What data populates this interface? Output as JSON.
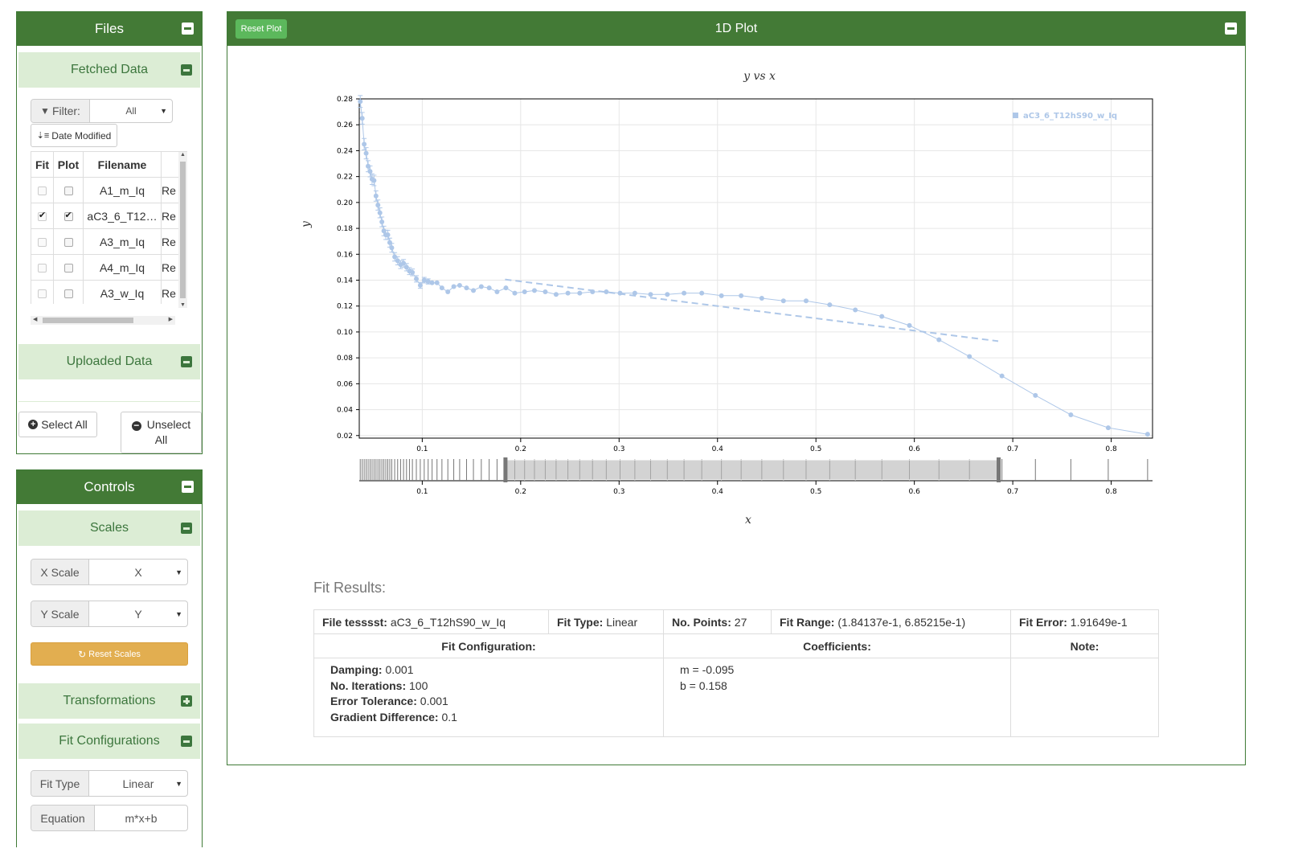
{
  "files_panel": {
    "title": "Files",
    "fetched": {
      "title": "Fetched Data",
      "filter_label": "Filter:",
      "filter_value": "All",
      "sort_label": "Date Modified",
      "columns": [
        "Fit",
        "Plot",
        "Filename"
      ],
      "rows": [
        {
          "fit": false,
          "plot": false,
          "name": "A1_m_Iq",
          "extra": "Re"
        },
        {
          "fit": true,
          "plot": true,
          "name": "aC3_6_T12…",
          "extra": "Re"
        },
        {
          "fit": false,
          "plot": false,
          "name": "A3_m_Iq",
          "extra": "Re"
        },
        {
          "fit": false,
          "plot": false,
          "name": "A4_m_Iq",
          "extra": "Re"
        },
        {
          "fit": false,
          "plot": false,
          "name": "A3_w_Iq",
          "extra": "Re"
        }
      ]
    },
    "uploaded": {
      "title": "Uploaded Data"
    },
    "select_all": "Select All",
    "unselect_all_1": "Unselect",
    "unselect_all_2": "All"
  },
  "controls_panel": {
    "title": "Controls",
    "scales": {
      "title": "Scales",
      "x_label": "X Scale",
      "x_value": "X",
      "y_label": "Y Scale",
      "y_value": "Y",
      "reset": "Reset Scales"
    },
    "transformations": {
      "title": "Transformations"
    },
    "fit_configs": {
      "title": "Fit Configurations",
      "fit_type_label": "Fit Type",
      "fit_type_value": "Linear",
      "equation_label": "Equation",
      "equation_value": "m*x+b"
    }
  },
  "plot_panel": {
    "title": "1D Plot",
    "reset_plot": "Reset Plot"
  },
  "chart_data": {
    "type": "scatter",
    "title": "y vs x",
    "xlabel": "x",
    "ylabel": "y",
    "xlim": [
      0.036,
      0.842
    ],
    "ylim": [
      0.018,
      0.28
    ],
    "xticks": [
      0.1,
      0.2,
      0.3,
      0.4,
      0.5,
      0.6,
      0.7,
      0.8
    ],
    "yticks": [
      0.02,
      0.04,
      0.06,
      0.08,
      0.1,
      0.12,
      0.14,
      0.16,
      0.18,
      0.2,
      0.22,
      0.24,
      0.26,
      0.28
    ],
    "legend": {
      "position": "top-right",
      "entries": [
        "aC3_6_T12hS90_w_Iq"
      ]
    },
    "brush_range": [
      0.184137,
      0.685215
    ],
    "series": [
      {
        "name": "aC3_6_T12hS90_w_Iq",
        "color": "#aec7e8",
        "x": [
          0.037,
          0.039,
          0.041,
          0.043,
          0.045,
          0.047,
          0.049,
          0.051,
          0.053,
          0.055,
          0.057,
          0.059,
          0.061,
          0.063,
          0.065,
          0.067,
          0.069,
          0.072,
          0.075,
          0.078,
          0.081,
          0.084,
          0.087,
          0.09,
          0.094,
          0.098,
          0.102,
          0.106,
          0.11,
          0.115,
          0.12,
          0.126,
          0.132,
          0.138,
          0.145,
          0.152,
          0.16,
          0.168,
          0.176,
          0.185,
          0.194,
          0.204,
          0.214,
          0.225,
          0.236,
          0.248,
          0.26,
          0.273,
          0.287,
          0.301,
          0.316,
          0.332,
          0.349,
          0.366,
          0.384,
          0.404,
          0.424,
          0.445,
          0.467,
          0.49,
          0.514,
          0.54,
          0.567,
          0.595,
          0.625,
          0.656,
          0.689,
          0.723,
          0.759,
          0.797,
          0.837
        ],
        "y": [
          0.278,
          0.265,
          0.245,
          0.238,
          0.228,
          0.224,
          0.218,
          0.217,
          0.205,
          0.198,
          0.192,
          0.185,
          0.178,
          0.175,
          0.175,
          0.169,
          0.165,
          0.158,
          0.155,
          0.152,
          0.153,
          0.15,
          0.147,
          0.146,
          0.141,
          0.136,
          0.14,
          0.139,
          0.138,
          0.138,
          0.134,
          0.131,
          0.135,
          0.136,
          0.134,
          0.132,
          0.135,
          0.134,
          0.131,
          0.134,
          0.13,
          0.131,
          0.132,
          0.131,
          0.129,
          0.13,
          0.13,
          0.131,
          0.131,
          0.13,
          0.13,
          0.129,
          0.129,
          0.13,
          0.13,
          0.128,
          0.128,
          0.126,
          0.124,
          0.124,
          0.121,
          0.117,
          0.112,
          0.105,
          0.094,
          0.081,
          0.066,
          0.051,
          0.036,
          0.026,
          0.021
        ]
      }
    ],
    "fit_line": {
      "m": -0.095,
      "b": 0.158,
      "x_range": [
        0.184137,
        0.685215
      ]
    }
  },
  "fit_results": {
    "heading": "Fit Results:",
    "file_label": "File tesssst:",
    "file_value": "aC3_6_T12hS90_w_Iq",
    "fit_type_label": "Fit Type:",
    "fit_type_value": "Linear",
    "points_label": "No. Points:",
    "points_value": "27",
    "range_label": "Fit Range:",
    "range_value": "(1.84137e-1, 6.85215e-1)",
    "error_label": "Fit Error:",
    "error_value": "1.91649e-1",
    "config_header": "Fit Configuration:",
    "coeff_header": "Coefficients:",
    "note_header": "Note:",
    "config": [
      {
        "label": "Damping:",
        "value": "0.001"
      },
      {
        "label": "No. Iterations:",
        "value": "100"
      },
      {
        "label": "Error Tolerance:",
        "value": "0.001"
      },
      {
        "label": "Gradient Difference:",
        "value": "0.1"
      }
    ],
    "coefficients": [
      "m = -0.095",
      "b = 0.158"
    ]
  }
}
